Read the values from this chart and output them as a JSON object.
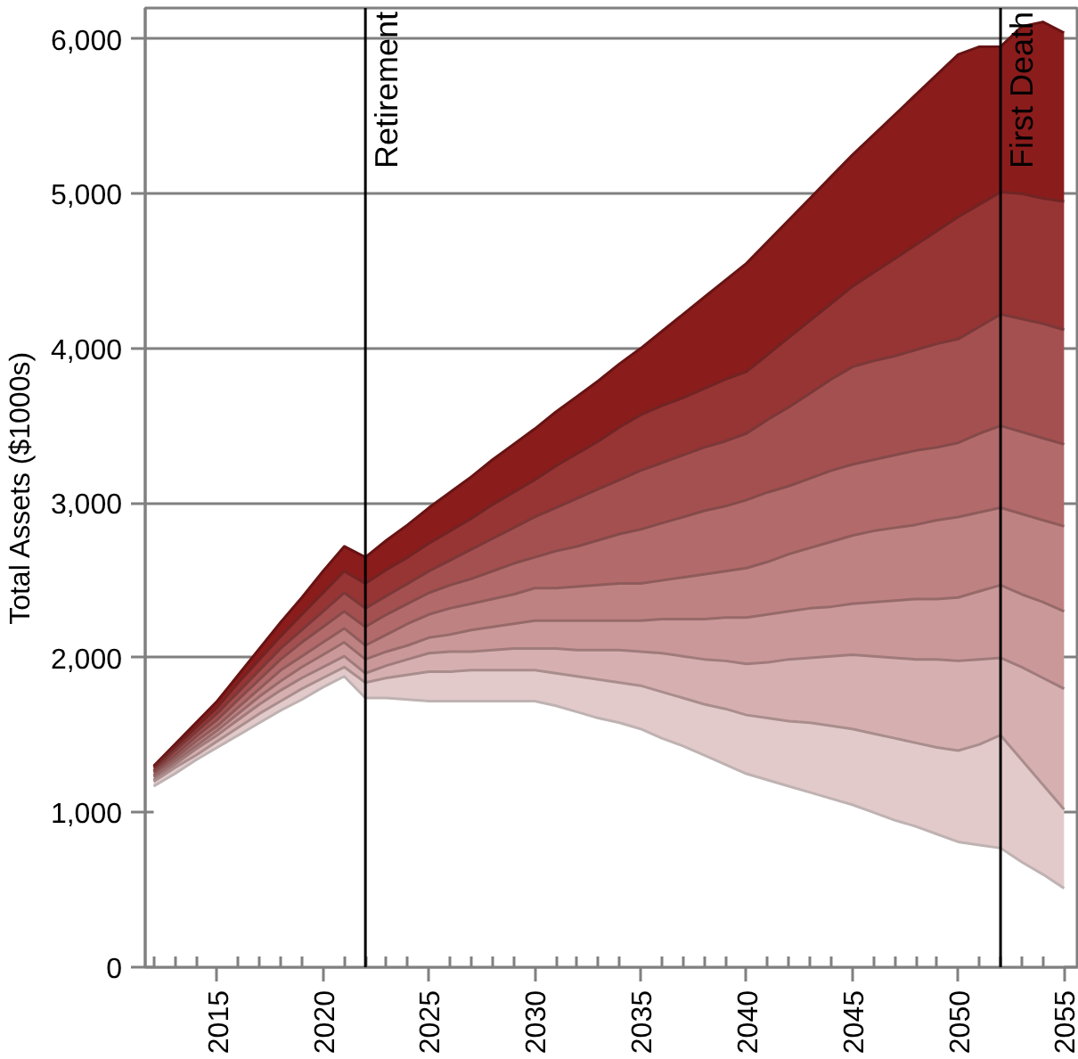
{
  "chart_data": {
    "type": "area",
    "ylabel": "Total Assets ($1000s)",
    "x": [
      2012,
      2013,
      2014,
      2015,
      2016,
      2017,
      2018,
      2019,
      2020,
      2021,
      2022,
      2023,
      2024,
      2025,
      2026,
      2027,
      2028,
      2029,
      2030,
      2031,
      2032,
      2033,
      2034,
      2035,
      2036,
      2037,
      2038,
      2039,
      2040,
      2041,
      2042,
      2043,
      2044,
      2045,
      2046,
      2047,
      2048,
      2049,
      2050,
      2051,
      2052,
      2053,
      2054,
      2055
    ],
    "series": [
      {
        "color": "#8b1c1c",
        "values": [
          1300,
          1440,
          1580,
          1720,
          1890,
          2060,
          2230,
          2390,
          2560,
          2720,
          2650,
          2760,
          2860,
          2970,
          3070,
          3170,
          3280,
          3380,
          3480,
          3590,
          3690,
          3790,
          3900,
          4000,
          4110,
          4220,
          4330,
          4440,
          4550,
          4690,
          4830,
          4970,
          5110,
          5250,
          5380,
          5510,
          5640,
          5770,
          5900,
          5950,
          5950,
          6080,
          6110,
          6040
        ]
      },
      {
        "color": "#973434",
        "values": [
          1290,
          1420,
          1550,
          1680,
          1840,
          1990,
          2140,
          2280,
          2420,
          2560,
          2480,
          2570,
          2650,
          2740,
          2820,
          2900,
          2990,
          3070,
          3150,
          3240,
          3320,
          3400,
          3490,
          3570,
          3630,
          3680,
          3740,
          3800,
          3850,
          3960,
          4070,
          4180,
          4290,
          4400,
          4490,
          4580,
          4670,
          4760,
          4850,
          4930,
          5010,
          5000,
          4970,
          4950
        ]
      },
      {
        "color": "#a55050",
        "values": [
          1270,
          1400,
          1520,
          1640,
          1780,
          1920,
          2060,
          2180,
          2300,
          2420,
          2320,
          2400,
          2480,
          2560,
          2630,
          2700,
          2770,
          2840,
          2910,
          2970,
          3030,
          3090,
          3150,
          3210,
          3260,
          3310,
          3360,
          3400,
          3450,
          3540,
          3620,
          3710,
          3800,
          3880,
          3920,
          3950,
          3990,
          4030,
          4060,
          4140,
          4220,
          4190,
          4160,
          4120
        ]
      },
      {
        "color": "#b26a6a",
        "values": [
          1260,
          1370,
          1490,
          1600,
          1730,
          1860,
          1990,
          2100,
          2200,
          2300,
          2200,
          2280,
          2350,
          2420,
          2470,
          2510,
          2560,
          2610,
          2650,
          2690,
          2720,
          2760,
          2800,
          2830,
          2870,
          2910,
          2950,
          2980,
          3020,
          3070,
          3110,
          3160,
          3210,
          3250,
          3280,
          3310,
          3340,
          3360,
          3390,
          3450,
          3500,
          3460,
          3420,
          3380
        ]
      },
      {
        "color": "#bf8282",
        "values": [
          1240,
          1350,
          1460,
          1560,
          1680,
          1800,
          1920,
          2010,
          2100,
          2190,
          2080,
          2150,
          2220,
          2280,
          2320,
          2350,
          2380,
          2410,
          2450,
          2450,
          2460,
          2470,
          2480,
          2480,
          2500,
          2520,
          2540,
          2560,
          2580,
          2620,
          2670,
          2710,
          2750,
          2790,
          2820,
          2840,
          2860,
          2890,
          2910,
          2940,
          2970,
          2930,
          2890,
          2850
        ]
      },
      {
        "color": "#ca9898",
        "values": [
          1230,
          1330,
          1430,
          1530,
          1640,
          1750,
          1850,
          1940,
          2020,
          2100,
          1990,
          2040,
          2080,
          2130,
          2150,
          2180,
          2200,
          2220,
          2240,
          2240,
          2240,
          2240,
          2240,
          2240,
          2250,
          2250,
          2250,
          2260,
          2260,
          2280,
          2300,
          2320,
          2330,
          2350,
          2360,
          2370,
          2380,
          2380,
          2390,
          2430,
          2470,
          2410,
          2360,
          2300
        ]
      },
      {
        "color": "#d6b0b0",
        "values": [
          1210,
          1310,
          1410,
          1500,
          1600,
          1700,
          1790,
          1870,
          1940,
          2010,
          1900,
          1950,
          1990,
          2030,
          2040,
          2040,
          2050,
          2060,
          2060,
          2060,
          2050,
          2050,
          2050,
          2040,
          2030,
          2010,
          1990,
          1980,
          1960,
          1970,
          1990,
          2000,
          2010,
          2020,
          2010,
          2000,
          1990,
          1990,
          1980,
          1990,
          2000,
          1940,
          1870,
          1800
        ]
      },
      {
        "color": "#e3caca",
        "values": [
          1200,
          1290,
          1370,
          1460,
          1550,
          1640,
          1720,
          1800,
          1870,
          1940,
          1840,
          1870,
          1890,
          1910,
          1910,
          1920,
          1920,
          1920,
          1920,
          1900,
          1880,
          1860,
          1840,
          1820,
          1780,
          1740,
          1700,
          1670,
          1630,
          1610,
          1590,
          1580,
          1560,
          1540,
          1510,
          1480,
          1450,
          1420,
          1400,
          1440,
          1500,
          1340,
          1180,
          1020
        ]
      },
      {
        "color": "#ffffff",
        "values": [
          1170,
          1250,
          1340,
          1420,
          1500,
          1580,
          1660,
          1730,
          1810,
          1880,
          1740,
          1740,
          1730,
          1720,
          1720,
          1720,
          1720,
          1720,
          1720,
          1690,
          1650,
          1610,
          1580,
          1540,
          1480,
          1430,
          1370,
          1310,
          1250,
          1210,
          1170,
          1130,
          1090,
          1050,
          1000,
          950,
          910,
          860,
          810,
          790,
          770,
          680,
          600,
          510
        ]
      }
    ],
    "xlim": [
      2011.6,
      2055.7
    ],
    "xticks": [
      {
        "value": 2012,
        "label": null
      },
      {
        "value": 2013,
        "label": null
      },
      {
        "value": 2014,
        "label": null
      },
      2015,
      {
        "value": 2016,
        "label": null
      },
      {
        "value": 2017,
        "label": null
      },
      {
        "value": 2018,
        "label": null
      },
      {
        "value": 2019,
        "label": null
      },
      2020,
      {
        "value": 2021,
        "label": null
      },
      {
        "value": 2022,
        "label": null
      },
      {
        "value": 2023,
        "label": null
      },
      {
        "value": 2024,
        "label": null
      },
      2025,
      {
        "value": 2026,
        "label": null
      },
      {
        "value": 2027,
        "label": null
      },
      {
        "value": 2028,
        "label": null
      },
      {
        "value": 2029,
        "label": null
      },
      2030,
      {
        "value": 2031,
        "label": null
      },
      {
        "value": 2032,
        "label": null
      },
      {
        "value": 2033,
        "label": null
      },
      {
        "value": 2034,
        "label": null
      },
      2035,
      {
        "value": 2036,
        "label": null
      },
      {
        "value": 2037,
        "label": null
      },
      {
        "value": 2038,
        "label": null
      },
      {
        "value": 2039,
        "label": null
      },
      2040,
      {
        "value": 2041,
        "label": null
      },
      {
        "value": 2042,
        "label": null
      },
      {
        "value": 2043,
        "label": null
      },
      {
        "value": 2044,
        "label": null
      },
      2045,
      {
        "value": 2046,
        "label": null
      },
      {
        "value": 2047,
        "label": null
      },
      {
        "value": 2048,
        "label": null
      },
      {
        "value": 2049,
        "label": null
      },
      2050,
      {
        "value": 2051,
        "label": null
      },
      {
        "value": 2052,
        "label": null
      },
      {
        "value": 2053,
        "label": null
      },
      {
        "value": 2054,
        "label": null
      },
      2055
    ],
    "ylim": [
      0,
      6200
    ],
    "yticks": [
      0,
      {
        "value": 1000,
        "label": "1,000"
      },
      {
        "value": 2000,
        "label": "2,000"
      },
      {
        "value": 3000,
        "label": "3,000"
      },
      {
        "value": 4000,
        "label": "4,000"
      },
      {
        "value": 5000,
        "label": "5,000"
      },
      {
        "value": 6000,
        "label": "6,000"
      }
    ],
    "grid": "y",
    "ref_lines": [
      {
        "axis": "x",
        "value": 2022,
        "label": "Retirement",
        "color": "#000000"
      },
      {
        "axis": "x",
        "value": 2052,
        "label": "First Death",
        "color": "#000000"
      }
    ]
  }
}
